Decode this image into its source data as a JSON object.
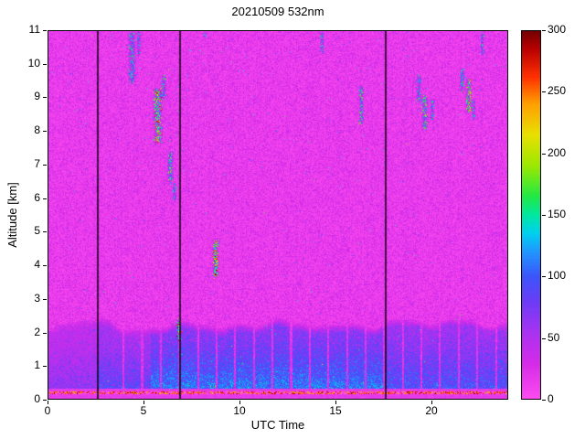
{
  "chart_data": {
    "type": "heatmap",
    "title": "20210509 532nm",
    "xlabel": "UTC Time",
    "ylabel": "Altitude [km]",
    "xlim": [
      0,
      24
    ],
    "ylim": [
      0,
      11
    ],
    "x_ticks": [
      0,
      5,
      10,
      15,
      20
    ],
    "y_ticks": [
      0,
      1,
      2,
      3,
      4,
      5,
      6,
      7,
      8,
      9,
      10,
      11
    ],
    "colorbar": {
      "range": [
        0,
        300
      ],
      "ticks": [
        0,
        50,
        100,
        150,
        200,
        250,
        300
      ]
    },
    "axis_color": "#000000",
    "background_color": "#ffffff",
    "legend_position": "right-colorbar",
    "grid": false,
    "colormap_stops": [
      [
        0,
        "#ff4cf0"
      ],
      [
        30,
        "#d42be8"
      ],
      [
        55,
        "#a833f2"
      ],
      [
        80,
        "#6b3cf7"
      ],
      [
        100,
        "#3b55fa"
      ],
      [
        120,
        "#2196ff"
      ],
      [
        135,
        "#00d0f0"
      ],
      [
        150,
        "#00e8a0"
      ],
      [
        165,
        "#22e845"
      ],
      [
        190,
        "#9ce800"
      ],
      [
        215,
        "#e8e000"
      ],
      [
        240,
        "#ffa000"
      ],
      [
        262,
        "#ff3000"
      ],
      [
        285,
        "#b80000"
      ],
      [
        300,
        "#6e0000"
      ]
    ],
    "background_noise": {
      "min": 6,
      "spread": 34,
      "bright_speckle_base": 0.0012,
      "bright_speckle_alt_gain": 0.003
    },
    "boundary_layer": {
      "base_height_km": 1.85,
      "height_variation_km": 0.35,
      "value_base": 50,
      "value_gain": 55
    },
    "bl_amplitude_segments": [
      [
        0,
        2.6,
        0.5
      ],
      [
        2.6,
        5.4,
        0.72
      ],
      [
        5.4,
        17.55,
        1.0
      ],
      [
        17.55,
        24,
        0.82
      ]
    ],
    "surface_line": {
      "altitude_km": 0.21,
      "half_width_km": 0.04
    },
    "data_gaps_utc": [
      2.62,
      6.9,
      17.62
    ],
    "bl_slot_gaps": {
      "first_utc": 3.96,
      "interval_hr": 0.97,
      "half_width_hr": 0.05
    },
    "clouds": [
      {
        "t": 4.4,
        "alt0": 9.4,
        "alt1": 11.0,
        "w": 0.22,
        "d": 0.5,
        "v0": 90,
        "v1": 180
      },
      {
        "t": 4.75,
        "alt0": 10.2,
        "alt1": 11.0,
        "w": 0.12,
        "d": 0.45,
        "v0": 90,
        "v1": 160
      },
      {
        "t": 5.75,
        "alt0": 7.6,
        "alt1": 9.3,
        "w": 0.28,
        "d": 0.7,
        "v0": 110,
        "v1": 290
      },
      {
        "t": 6.05,
        "alt0": 8.9,
        "alt1": 9.7,
        "w": 0.15,
        "d": 0.5,
        "v0": 100,
        "v1": 190
      },
      {
        "t": 6.4,
        "alt0": 6.4,
        "alt1": 7.4,
        "w": 0.18,
        "d": 0.55,
        "v0": 100,
        "v1": 210
      },
      {
        "t": 6.6,
        "alt0": 5.9,
        "alt1": 6.5,
        "w": 0.12,
        "d": 0.45,
        "v0": 95,
        "v1": 170
      },
      {
        "t": 6.85,
        "alt0": 1.75,
        "alt1": 2.45,
        "w": 0.14,
        "d": 0.8,
        "v0": 130,
        "v1": 300
      },
      {
        "t": 8.75,
        "alt0": 3.6,
        "alt1": 4.8,
        "w": 0.2,
        "d": 0.8,
        "v0": 130,
        "v1": 310
      },
      {
        "t": 8.2,
        "alt0": 10.7,
        "alt1": 11.0,
        "w": 0.08,
        "d": 0.5,
        "v0": 95,
        "v1": 160
      },
      {
        "t": 14.3,
        "alt0": 10.3,
        "alt1": 11.0,
        "w": 0.12,
        "d": 0.5,
        "v0": 95,
        "v1": 170
      },
      {
        "t": 16.35,
        "alt0": 8.2,
        "alt1": 9.4,
        "w": 0.15,
        "d": 0.55,
        "v0": 100,
        "v1": 200
      },
      {
        "t": 19.35,
        "alt0": 8.8,
        "alt1": 9.7,
        "w": 0.16,
        "d": 0.5,
        "v0": 95,
        "v1": 185
      },
      {
        "t": 19.65,
        "alt0": 8.0,
        "alt1": 9.1,
        "w": 0.2,
        "d": 0.55,
        "v0": 100,
        "v1": 210
      },
      {
        "t": 20.05,
        "alt0": 8.3,
        "alt1": 9.0,
        "w": 0.12,
        "d": 0.45,
        "v0": 95,
        "v1": 170
      },
      {
        "t": 21.6,
        "alt0": 9.1,
        "alt1": 9.9,
        "w": 0.15,
        "d": 0.5,
        "v0": 100,
        "v1": 190
      },
      {
        "t": 21.95,
        "alt0": 8.5,
        "alt1": 9.6,
        "w": 0.2,
        "d": 0.65,
        "v0": 110,
        "v1": 260
      },
      {
        "t": 22.2,
        "alt0": 8.3,
        "alt1": 9.0,
        "w": 0.1,
        "d": 0.45,
        "v0": 95,
        "v1": 170
      },
      {
        "t": 22.65,
        "alt0": 10.2,
        "alt1": 10.95,
        "w": 0.1,
        "d": 0.5,
        "v0": 95,
        "v1": 165
      }
    ]
  }
}
